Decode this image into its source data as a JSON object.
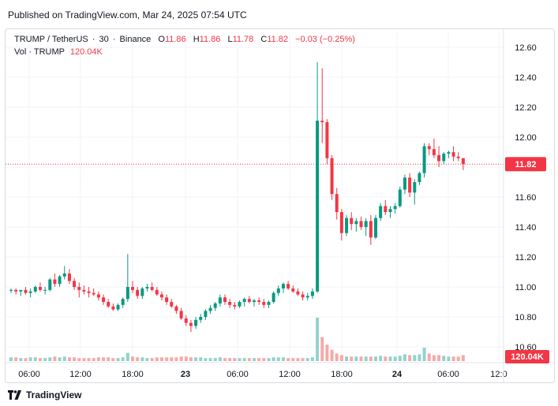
{
  "header": {
    "published": "Published on TradingView.com, Mar 24, 2025 07:54 UTC"
  },
  "legend": {
    "symbol": "TRUMP / TetherUS",
    "interval": "30",
    "exchange": "Binance",
    "open_label": "O",
    "open": "11.86",
    "high_label": "H",
    "high": "11.86",
    "low_label": "L",
    "low": "11.78",
    "close_label": "C",
    "close": "11.82",
    "change": "−0.03 (−0.25%)",
    "vol_label": "Vol · TRUMP",
    "vol_value": "120.04K"
  },
  "price_badge": "11.82",
  "volume_badge": "120.04K",
  "footer": {
    "brand": "TradingView"
  },
  "colors": {
    "up": "#089981",
    "down": "#f23645",
    "up_vol": "#92d2cc",
    "down_vol": "#f7a9a7",
    "text": "#131722"
  },
  "chart_data": {
    "type": "candlestick",
    "symbol": "TRUMP / TetherUS",
    "interval": "30",
    "y_ticks": [
      "12.60",
      "12.40",
      "12.20",
      "12.00",
      "11.80",
      "11.60",
      "11.40",
      "11.20",
      "11.00",
      "10.80",
      "10.60"
    ],
    "ylim": [
      10.53,
      12.68
    ],
    "x_ticks": [
      "06:00",
      "12:00",
      "18:00",
      "23",
      "06:00",
      "12:00",
      "18:00",
      "24",
      "06:00",
      "12:0"
    ],
    "last_price": 11.82,
    "last_volume": "120.04K",
    "candles": [
      [
        10.98,
        10.99,
        10.96,
        10.98
      ],
      [
        10.98,
        10.99,
        10.95,
        10.97
      ],
      [
        10.97,
        10.98,
        10.94,
        10.98
      ],
      [
        10.98,
        11.0,
        10.95,
        10.96
      ],
      [
        10.96,
        10.99,
        10.93,
        10.97
      ],
      [
        10.97,
        11.01,
        10.96,
        11.0
      ],
      [
        11.0,
        11.03,
        10.97,
        10.98
      ],
      [
        10.98,
        11.0,
        10.95,
        10.98
      ],
      [
        10.98,
        11.06,
        10.97,
        11.05
      ],
      [
        11.05,
        11.09,
        11.0,
        11.02
      ],
      [
        11.02,
        11.08,
        11.0,
        11.07
      ],
      [
        11.07,
        11.14,
        11.05,
        11.09
      ],
      [
        11.09,
        11.12,
        11.02,
        11.04
      ],
      [
        11.04,
        11.06,
        10.98,
        11.0
      ],
      [
        11.0,
        11.03,
        10.93,
        10.98
      ],
      [
        10.98,
        11.01,
        10.95,
        10.97
      ],
      [
        10.97,
        11.0,
        10.93,
        10.96
      ],
      [
        10.96,
        10.99,
        10.94,
        10.95
      ],
      [
        10.95,
        10.97,
        10.91,
        10.93
      ],
      [
        10.93,
        10.95,
        10.88,
        10.9
      ],
      [
        10.9,
        10.92,
        10.86,
        10.87
      ],
      [
        10.87,
        10.89,
        10.84,
        10.85
      ],
      [
        10.85,
        10.89,
        10.84,
        10.88
      ],
      [
        10.88,
        10.93,
        10.86,
        10.92
      ],
      [
        10.92,
        11.22,
        10.9,
        11.0
      ],
      [
        11.0,
        11.04,
        10.96,
        10.98
      ],
      [
        10.98,
        11.0,
        10.92,
        10.94
      ],
      [
        10.94,
        11.0,
        10.92,
        10.99
      ],
      [
        10.99,
        11.02,
        10.97,
        11.0
      ],
      [
        11.0,
        11.03,
        10.97,
        10.98
      ],
      [
        10.98,
        11.0,
        10.94,
        10.95
      ],
      [
        10.95,
        10.97,
        10.91,
        10.93
      ],
      [
        10.93,
        10.95,
        10.88,
        10.9
      ],
      [
        10.9,
        10.92,
        10.86,
        10.87
      ],
      [
        10.87,
        10.88,
        10.82,
        10.84
      ],
      [
        10.84,
        10.86,
        10.78,
        10.79
      ],
      [
        10.79,
        10.81,
        10.74,
        10.76
      ],
      [
        10.76,
        10.78,
        10.7,
        10.74
      ],
      [
        10.74,
        10.8,
        10.72,
        10.78
      ],
      [
        10.78,
        10.82,
        10.76,
        10.8
      ],
      [
        10.8,
        10.85,
        10.78,
        10.84
      ],
      [
        10.84,
        10.88,
        10.82,
        10.86
      ],
      [
        10.86,
        10.9,
        10.84,
        10.89
      ],
      [
        10.89,
        10.95,
        10.87,
        10.93
      ],
      [
        10.93,
        10.95,
        10.88,
        10.9
      ],
      [
        10.9,
        10.92,
        10.86,
        10.88
      ],
      [
        10.88,
        10.9,
        10.85,
        10.87
      ],
      [
        10.87,
        10.91,
        10.86,
        10.9
      ],
      [
        10.9,
        10.93,
        10.87,
        10.92
      ],
      [
        10.92,
        10.94,
        10.89,
        10.9
      ],
      [
        10.9,
        10.92,
        10.87,
        10.91
      ],
      [
        10.91,
        10.93,
        10.88,
        10.9
      ],
      [
        10.9,
        10.92,
        10.86,
        10.88
      ],
      [
        10.88,
        10.91,
        10.86,
        10.9
      ],
      [
        10.9,
        10.97,
        10.89,
        10.96
      ],
      [
        10.96,
        11.01,
        10.94,
        10.99
      ],
      [
        10.99,
        11.03,
        10.96,
        11.02
      ],
      [
        11.02,
        11.04,
        10.98,
        10.99
      ],
      [
        10.99,
        11.01,
        10.96,
        10.97
      ],
      [
        10.97,
        10.99,
        10.94,
        10.95
      ],
      [
        10.95,
        10.97,
        10.91,
        10.93
      ],
      [
        10.93,
        10.96,
        10.91,
        10.94
      ],
      [
        10.94,
        10.99,
        10.92,
        10.97
      ],
      [
        10.97,
        12.5,
        10.96,
        12.11
      ],
      [
        12.11,
        12.46,
        11.96,
        12.1
      ],
      [
        12.1,
        12.12,
        11.82,
        11.86
      ],
      [
        11.86,
        11.88,
        11.58,
        11.62
      ],
      [
        11.62,
        11.66,
        11.45,
        11.5
      ],
      [
        11.5,
        11.52,
        11.31,
        11.36
      ],
      [
        11.36,
        11.48,
        11.34,
        11.46
      ],
      [
        11.46,
        11.5,
        11.38,
        11.42
      ],
      [
        11.42,
        11.46,
        11.37,
        11.44
      ],
      [
        11.44,
        11.47,
        11.38,
        11.4
      ],
      [
        11.4,
        11.46,
        11.34,
        11.44
      ],
      [
        11.44,
        11.48,
        11.28,
        11.33
      ],
      [
        11.33,
        11.48,
        11.32,
        11.46
      ],
      [
        11.46,
        11.56,
        11.44,
        11.54
      ],
      [
        11.54,
        11.58,
        11.48,
        11.5
      ],
      [
        11.5,
        11.54,
        11.46,
        11.52
      ],
      [
        11.52,
        11.56,
        11.49,
        11.54
      ],
      [
        11.54,
        11.67,
        11.53,
        11.65
      ],
      [
        11.65,
        11.75,
        11.62,
        11.73
      ],
      [
        11.73,
        11.76,
        11.6,
        11.63
      ],
      [
        11.63,
        11.72,
        11.55,
        11.7
      ],
      [
        11.7,
        11.77,
        11.68,
        11.76
      ],
      [
        11.76,
        11.96,
        11.73,
        11.94
      ],
      [
        11.94,
        11.96,
        11.88,
        11.92
      ],
      [
        11.92,
        11.99,
        11.86,
        11.88
      ],
      [
        11.88,
        11.94,
        11.8,
        11.84
      ],
      [
        11.84,
        11.9,
        11.82,
        11.89
      ],
      [
        11.89,
        11.91,
        11.86,
        11.9
      ],
      [
        11.9,
        11.94,
        11.84,
        11.87
      ],
      [
        11.87,
        11.9,
        11.84,
        11.86
      ],
      [
        11.86,
        11.86,
        11.78,
        11.82
      ]
    ],
    "volumes": [
      5,
      5,
      4,
      4,
      5,
      5,
      4,
      4,
      5,
      6,
      5,
      6,
      5,
      5,
      4,
      4,
      4,
      4,
      5,
      5,
      5,
      4,
      4,
      5,
      11,
      6,
      5,
      5,
      4,
      4,
      5,
      5,
      5,
      5,
      5,
      6,
      6,
      5,
      5,
      5,
      4,
      4,
      4,
      5,
      4,
      4,
      4,
      4,
      4,
      4,
      4,
      4,
      4,
      4,
      5,
      5,
      5,
      4,
      4,
      4,
      4,
      4,
      5,
      58,
      32,
      22,
      15,
      10,
      8,
      6,
      6,
      6,
      6,
      6,
      6,
      6,
      7,
      6,
      6,
      6,
      7,
      9,
      8,
      8,
      9,
      18,
      10,
      8,
      8,
      7,
      6,
      6,
      6,
      8
    ]
  }
}
